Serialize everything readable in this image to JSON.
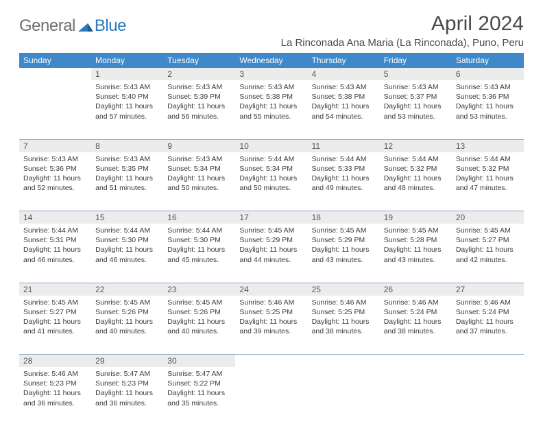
{
  "logo": {
    "gray": "General",
    "blue": "Blue"
  },
  "title": "April 2024",
  "location": "La Rinconada Ana Maria (La Rinconada), Puno, Peru",
  "colors": {
    "header_bg": "#3f89c9",
    "header_text": "#ffffff",
    "daynum_bg": "#ececec",
    "row_divider": "#8aa8c8",
    "logo_gray": "#6e6e6e",
    "logo_blue": "#2d78bd",
    "body_text": "#3a3a3a",
    "page_bg": "#ffffff"
  },
  "weekdays": [
    "Sunday",
    "Monday",
    "Tuesday",
    "Wednesday",
    "Thursday",
    "Friday",
    "Saturday"
  ],
  "weeks": [
    [
      null,
      {
        "n": "1",
        "sunrise": "5:43 AM",
        "sunset": "5:40 PM",
        "daylight": "11 hours and 57 minutes."
      },
      {
        "n": "2",
        "sunrise": "5:43 AM",
        "sunset": "5:39 PM",
        "daylight": "11 hours and 56 minutes."
      },
      {
        "n": "3",
        "sunrise": "5:43 AM",
        "sunset": "5:38 PM",
        "daylight": "11 hours and 55 minutes."
      },
      {
        "n": "4",
        "sunrise": "5:43 AM",
        "sunset": "5:38 PM",
        "daylight": "11 hours and 54 minutes."
      },
      {
        "n": "5",
        "sunrise": "5:43 AM",
        "sunset": "5:37 PM",
        "daylight": "11 hours and 53 minutes."
      },
      {
        "n": "6",
        "sunrise": "5:43 AM",
        "sunset": "5:36 PM",
        "daylight": "11 hours and 53 minutes."
      }
    ],
    [
      {
        "n": "7",
        "sunrise": "5:43 AM",
        "sunset": "5:36 PM",
        "daylight": "11 hours and 52 minutes."
      },
      {
        "n": "8",
        "sunrise": "5:43 AM",
        "sunset": "5:35 PM",
        "daylight": "11 hours and 51 minutes."
      },
      {
        "n": "9",
        "sunrise": "5:43 AM",
        "sunset": "5:34 PM",
        "daylight": "11 hours and 50 minutes."
      },
      {
        "n": "10",
        "sunrise": "5:44 AM",
        "sunset": "5:34 PM",
        "daylight": "11 hours and 50 minutes."
      },
      {
        "n": "11",
        "sunrise": "5:44 AM",
        "sunset": "5:33 PM",
        "daylight": "11 hours and 49 minutes."
      },
      {
        "n": "12",
        "sunrise": "5:44 AM",
        "sunset": "5:32 PM",
        "daylight": "11 hours and 48 minutes."
      },
      {
        "n": "13",
        "sunrise": "5:44 AM",
        "sunset": "5:32 PM",
        "daylight": "11 hours and 47 minutes."
      }
    ],
    [
      {
        "n": "14",
        "sunrise": "5:44 AM",
        "sunset": "5:31 PM",
        "daylight": "11 hours and 46 minutes."
      },
      {
        "n": "15",
        "sunrise": "5:44 AM",
        "sunset": "5:30 PM",
        "daylight": "11 hours and 46 minutes."
      },
      {
        "n": "16",
        "sunrise": "5:44 AM",
        "sunset": "5:30 PM",
        "daylight": "11 hours and 45 minutes."
      },
      {
        "n": "17",
        "sunrise": "5:45 AM",
        "sunset": "5:29 PM",
        "daylight": "11 hours and 44 minutes."
      },
      {
        "n": "18",
        "sunrise": "5:45 AM",
        "sunset": "5:29 PM",
        "daylight": "11 hours and 43 minutes."
      },
      {
        "n": "19",
        "sunrise": "5:45 AM",
        "sunset": "5:28 PM",
        "daylight": "11 hours and 43 minutes."
      },
      {
        "n": "20",
        "sunrise": "5:45 AM",
        "sunset": "5:27 PM",
        "daylight": "11 hours and 42 minutes."
      }
    ],
    [
      {
        "n": "21",
        "sunrise": "5:45 AM",
        "sunset": "5:27 PM",
        "daylight": "11 hours and 41 minutes."
      },
      {
        "n": "22",
        "sunrise": "5:45 AM",
        "sunset": "5:26 PM",
        "daylight": "11 hours and 40 minutes."
      },
      {
        "n": "23",
        "sunrise": "5:45 AM",
        "sunset": "5:26 PM",
        "daylight": "11 hours and 40 minutes."
      },
      {
        "n": "24",
        "sunrise": "5:46 AM",
        "sunset": "5:25 PM",
        "daylight": "11 hours and 39 minutes."
      },
      {
        "n": "25",
        "sunrise": "5:46 AM",
        "sunset": "5:25 PM",
        "daylight": "11 hours and 38 minutes."
      },
      {
        "n": "26",
        "sunrise": "5:46 AM",
        "sunset": "5:24 PM",
        "daylight": "11 hours and 38 minutes."
      },
      {
        "n": "27",
        "sunrise": "5:46 AM",
        "sunset": "5:24 PM",
        "daylight": "11 hours and 37 minutes."
      }
    ],
    [
      {
        "n": "28",
        "sunrise": "5:46 AM",
        "sunset": "5:23 PM",
        "daylight": "11 hours and 36 minutes."
      },
      {
        "n": "29",
        "sunrise": "5:47 AM",
        "sunset": "5:23 PM",
        "daylight": "11 hours and 36 minutes."
      },
      {
        "n": "30",
        "sunrise": "5:47 AM",
        "sunset": "5:22 PM",
        "daylight": "11 hours and 35 minutes."
      },
      null,
      null,
      null,
      null
    ]
  ],
  "labels": {
    "sunrise": "Sunrise:",
    "sunset": "Sunset:",
    "daylight": "Daylight:"
  }
}
